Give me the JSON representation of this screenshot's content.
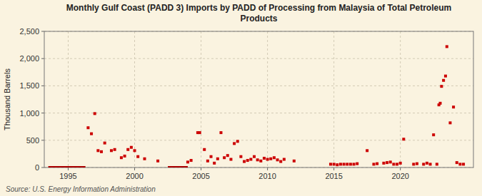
{
  "chart_data": {
    "type": "scatter",
    "title": "Monthly Gulf Coast (PADD 3) Imports by PADD of Processing from Malaysia of Total Petroleum\nProducts",
    "y_label": "Thousand Barrels",
    "source": "Source: U.S. Energy Information Administration",
    "xlim": [
      1993.2,
      2025.5
    ],
    "ylim": [
      0,
      2500
    ],
    "xticks": [
      1995,
      2000,
      2005,
      2010,
      2015,
      2020
    ],
    "yticks": [
      0,
      500,
      {
        "value": 1000,
        "label": "1,000"
      },
      {
        "value": 1500,
        "label": "1,500"
      },
      {
        "value": 2000,
        "label": "2,000"
      },
      {
        "value": 2500,
        "label": "2,500"
      }
    ],
    "grid": true,
    "series": [
      {
        "type": "scatter",
        "color": "#cc0000",
        "marker": "square",
        "x": [
          1996.5,
          1996.75,
          1997.0,
          1997.25,
          1997.5,
          1997.75,
          1998.25,
          1998.5,
          1999.0,
          1999.25,
          1999.5,
          1999.75,
          2000.0,
          2000.25,
          2000.75,
          2001.75,
          2004.0,
          2004.25,
          2004.75,
          2004.9,
          2005.25,
          2005.5,
          2005.75,
          2006.0,
          2006.25,
          2006.5,
          2006.75,
          2007.0,
          2007.25,
          2007.5,
          2007.75,
          2008.0,
          2008.25,
          2008.5,
          2008.75,
          2009.0,
          2009.25,
          2009.5,
          2009.75,
          2010.0,
          2010.25,
          2010.5,
          2010.75,
          2011.0,
          2011.25,
          2012.0,
          2014.75,
          2015.0,
          2015.25,
          2015.5,
          2015.75,
          2016.0,
          2016.25,
          2016.5,
          2016.75,
          2017.5,
          2018.0,
          2018.25,
          2018.75,
          2019.0,
          2019.25,
          2019.5,
          2019.75,
          2020.0,
          2020.25,
          2021.0,
          2021.25,
          2021.75,
          2022.0,
          2022.25,
          2022.5,
          2022.75,
          2022.9,
          2023.0,
          2023.1,
          2023.25,
          2023.4,
          2023.5,
          2023.75,
          2024.0,
          2024.25,
          2024.5,
          2024.75
        ],
        "values": [
          730,
          620,
          990,
          310,
          290,
          450,
          310,
          330,
          180,
          210,
          330,
          370,
          310,
          200,
          160,
          120,
          100,
          130,
          640,
          640,
          330,
          120,
          200,
          80,
          160,
          640,
          180,
          220,
          150,
          440,
          480,
          200,
          110,
          130,
          150,
          200,
          140,
          120,
          170,
          150,
          160,
          180,
          140,
          110,
          150,
          120,
          60,
          60,
          50,
          60,
          60,
          60,
          60,
          60,
          70,
          310,
          60,
          70,
          80,
          90,
          100,
          60,
          60,
          80,
          520,
          60,
          70,
          60,
          80,
          60,
          600,
          60,
          1150,
          1180,
          1490,
          1600,
          1680,
          2220,
          820,
          1110,
          90,
          60,
          60
        ]
      },
      {
        "type": "line",
        "color": "#aa0000",
        "x": [
          1993.5,
          1996.3
        ],
        "values": [
          0,
          0
        ]
      },
      {
        "type": "line",
        "color": "#aa0000",
        "x": [
          2002.5,
          2004.0
        ],
        "values": [
          0,
          0
        ]
      }
    ]
  }
}
